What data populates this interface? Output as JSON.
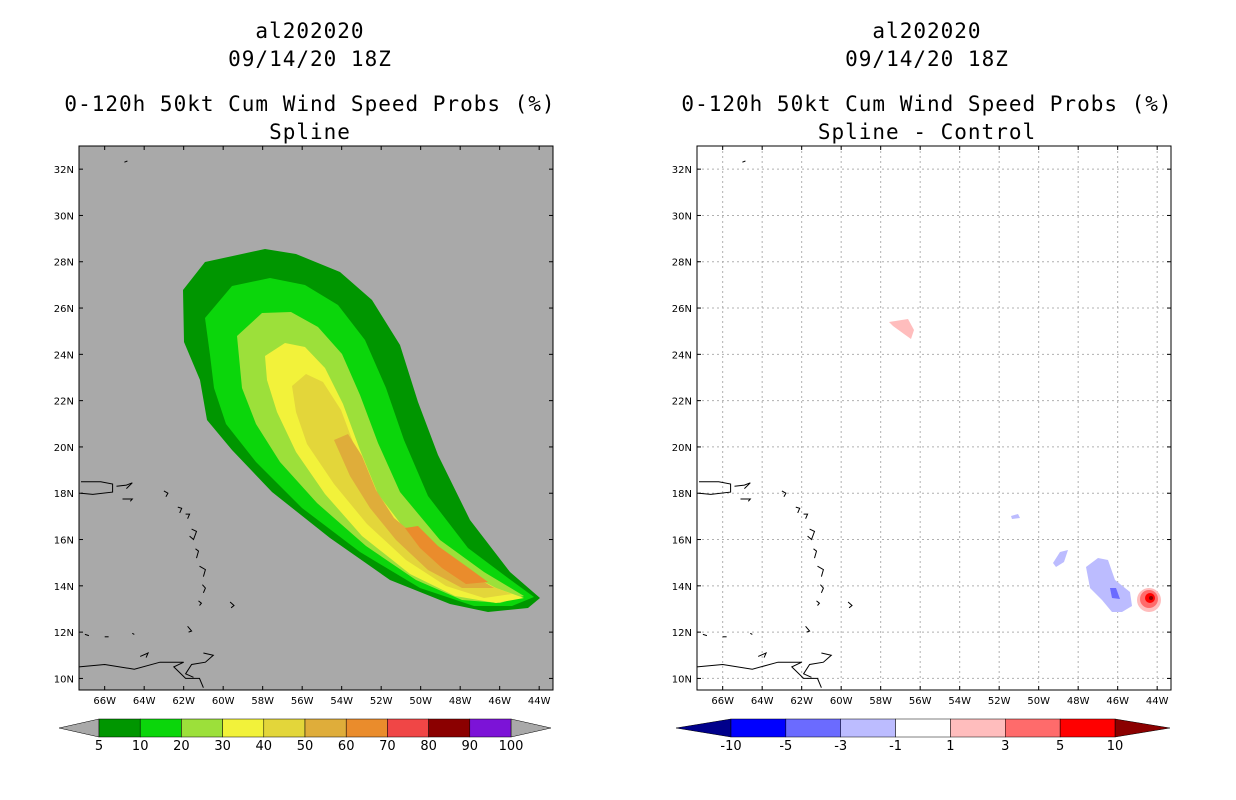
{
  "chart_data": [
    {
      "type": "contour-map",
      "storm_id": "al202020",
      "datetime": "09/14/20 18Z",
      "title": "0-120h 50kt Cum Wind Speed Probs (%)",
      "subtitle": "Spline",
      "lon_ticks": [
        "66W",
        "64W",
        "62W",
        "60W",
        "58W",
        "56W",
        "54W",
        "52W",
        "50W",
        "48W",
        "46W",
        "44W"
      ],
      "lat_ticks": [
        "10N",
        "12N",
        "14N",
        "16N",
        "18N",
        "20N",
        "22N",
        "24N",
        "26N",
        "28N",
        "30N",
        "32N"
      ],
      "lon_range": [
        -67.3,
        -43.3
      ],
      "lat_range": [
        9.5,
        33.0
      ],
      "background_color": "#a9a9a9",
      "colorbar": {
        "levels": [
          "5",
          "10",
          "20",
          "30",
          "40",
          "50",
          "60",
          "70",
          "80",
          "90",
          "100"
        ],
        "colors": [
          "#009600",
          "#0bd60b",
          "#9ce03a",
          "#f2f23a",
          "#e3d63a",
          "#dfad3a",
          "#ea8c2c",
          "#f04646",
          "#8b0000",
          "#7c13d7"
        ]
      },
      "contours": [
        {
          "level": 5,
          "color": "#009600"
        },
        {
          "level": 10,
          "color": "#0bd60b"
        },
        {
          "level": 20,
          "color": "#9ce03a"
        },
        {
          "level": 30,
          "color": "#f2f23a"
        },
        {
          "level": 40,
          "color": "#e3d63a"
        },
        {
          "level": 50,
          "color": "#dfad3a"
        },
        {
          "level": 60,
          "color": "#ea8c2c"
        }
      ]
    },
    {
      "type": "contour-map",
      "storm_id": "al202020",
      "datetime": "09/14/20 18Z",
      "title": "0-120h 50kt Cum Wind Speed Probs (%)",
      "subtitle": "Spline - Control",
      "lon_ticks": [
        "66W",
        "64W",
        "62W",
        "60W",
        "58W",
        "56W",
        "54W",
        "52W",
        "50W",
        "48W",
        "46W",
        "44W"
      ],
      "lat_ticks": [
        "10N",
        "12N",
        "14N",
        "16N",
        "18N",
        "20N",
        "22N",
        "24N",
        "26N",
        "28N",
        "30N",
        "32N"
      ],
      "lon_range": [
        -67.3,
        -43.3
      ],
      "lat_range": [
        9.5,
        33.0
      ],
      "background_color": "#ffffff",
      "grid": true,
      "colorbar": {
        "levels": [
          "-10",
          "-5",
          "-3",
          "-1",
          "1",
          "3",
          "5",
          "10"
        ],
        "colors": [
          "#00008b",
          "#0000ff",
          "#6b6bff",
          "#bcbcff",
          "#ffffff",
          "#ffbdbd",
          "#ff6b6b",
          "#ff0000",
          "#8b0000"
        ]
      },
      "anomalies": [
        {
          "sign": "positive",
          "value": 1,
          "lon": -56.5,
          "lat": 25.2
        },
        {
          "sign": "negative",
          "value": -1,
          "lon": -49.3,
          "lat": 17.1
        },
        {
          "sign": "negative",
          "value": -1,
          "lon": -48.0,
          "lat": 15.0
        },
        {
          "sign": "negative",
          "value": -1,
          "lon": -46.0,
          "lat": 14.2
        },
        {
          "sign": "negative",
          "value": -3,
          "lon": -46.0,
          "lat": 13.6
        },
        {
          "sign": "positive",
          "value": 5,
          "lon": -44.1,
          "lat": 13.5
        }
      ]
    }
  ]
}
